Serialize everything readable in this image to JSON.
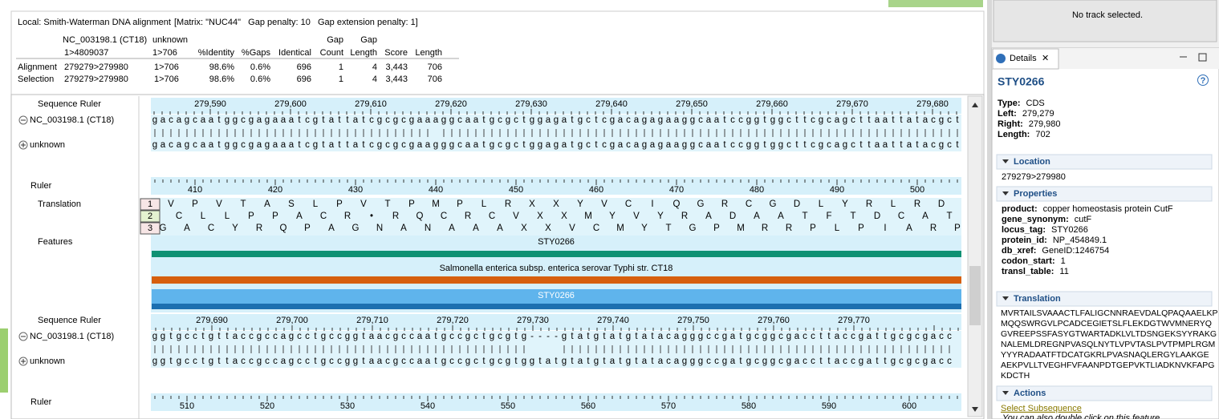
{
  "alignment_summary": {
    "title": "Local: Smith-Waterman DNA alignment",
    "parameters": "[Matrix: \"NUC44\"   Gap penalty: 10   Gap extension penalty: 1]",
    "columns": [
      [
        "NC_003198.1 (CT18)",
        "1>4809037"
      ],
      [
        "unknown",
        "1>706"
      ],
      [
        "%Identity"
      ],
      [
        "%Gaps"
      ],
      [
        "Identical"
      ],
      [
        "Gap",
        "Count"
      ],
      [
        "Gap",
        "Length"
      ],
      [
        "Score"
      ],
      [
        "Length"
      ]
    ],
    "rows": [
      [
        "Alignment",
        "279279>279980",
        "1>706",
        "98.6%",
        "0.6%",
        "696",
        "1",
        "4",
        "3,443",
        "706"
      ],
      [
        "Selection",
        "279279>279980",
        "1>706",
        "98.6%",
        "0.6%",
        "696",
        "1",
        "4",
        "3,443",
        "706"
      ]
    ]
  },
  "sequence_view": {
    "blocks": [
      {
        "sequence_ruler_label": "Sequence Ruler",
        "sequence_ruler": [
          "279,590",
          "279,600",
          "279,610",
          "279,620",
          "279,630",
          "279,640",
          "279,650",
          "279,660",
          "279,670",
          "279,680"
        ],
        "seq1_name": "NC_003198.1 (CT18)",
        "seq1": "gacagcaatggcgagaaatcgtattatcgcgcgaaaggcaatgcgctggagatgctcgacagagaaggcaatccggtggcttcgcagcttaattatacgct",
        "seq2_name": "unknown",
        "seq2": "gacagcaatggcgagaaatcgtattatcgcgcgaagggcaatgcgctggagatgctcgacagagaaggcaatccggtggcttcgcagcttaattatacgct",
        "ruler_label": "Ruler",
        "ruler": [
          "410",
          "420",
          "430",
          "440",
          "450",
          "460",
          "470",
          "480",
          "490",
          "500"
        ]
      },
      {
        "sequence_ruler_label": "Sequence Ruler",
        "sequence_ruler": [
          "279,690",
          "279,700",
          "279,710",
          "279,720",
          "279,730",
          "279,740",
          "279,750",
          "279,760",
          "279,770"
        ],
        "seq1_name": "NC_003198.1 (CT18)",
        "seq1": "ggtgcctgttaccgccagcctgccggtaacgccaatgccgctgcgtg----gtatgtatgtatacagggccgatgcggcgaccttaccgattgcgcgacc",
        "seq2_name": "unknown",
        "seq2": "ggtgcctgttaccgccagcctgccggtaacgccaatgccgctgcgtggtatgtatgtatgtatacagggccgatgcggcgaccttaccgattgcgcgacc",
        "ruler_label": "Ruler",
        "ruler": [
          "510",
          "520",
          "530",
          "540",
          "550",
          "560",
          "570",
          "580",
          "590",
          "600"
        ]
      }
    ],
    "translation_label": "Translation",
    "frames": [
      {
        "number": "1",
        "aa": "VPVTASLPVTPMPLRXXYVCIQGRCGDLYRLRD"
      },
      {
        "number": "2",
        "aa": "CLLPPACR•RQCRCVXXMYVYRADAATFTDCAT"
      },
      {
        "number": "3",
        "aa": "GACYRQPAGNANAAAXXVCMYTGPMRRPLPIARP"
      }
    ],
    "features_label": "Features",
    "features": [
      "STY0266",
      "Salmonella enterica subsp. enterica serovar Typhi str. CT18",
      "STY0266"
    ]
  },
  "track_panel": {
    "message": "No track selected."
  },
  "details": {
    "tab": "Details",
    "name": "STY0266",
    "summary": [
      [
        "Type:",
        "CDS"
      ],
      [
        "Left:",
        "279,279"
      ],
      [
        "Right:",
        "279,980"
      ],
      [
        "Length:",
        "702"
      ]
    ],
    "location_header": "Location",
    "location": "279279>279980",
    "properties_header": "Properties",
    "properties": [
      [
        "product:",
        "copper homeostasis protein CutF"
      ],
      [
        "gene_synonym:",
        "cutF"
      ],
      [
        "locus_tag:",
        "STY0266"
      ],
      [
        "protein_id:",
        "NP_454849.1"
      ],
      [
        "db_xref:",
        "GeneID:1246754"
      ],
      [
        "codon_start:",
        "1"
      ],
      [
        "transl_table:",
        "11"
      ]
    ],
    "translation_header": "Translation",
    "translation": [
      "MVRTAILSVAAACTLFALIGCNNRAEVDALQPAQAAELKP",
      "MQQSWRGVLPCADCEGIETSLFLEKDGTWVMNERYQ",
      "GVREEPSSFASYGTWARTADKLVLTDSNGEKSYYRAKG",
      "NALEMLDREGNPVASQLNYTLVPVTASLPVTPMPLRGM",
      "YYYRADAATFTDCATGKRLPVASNAQLERGYLAAKGE",
      "AEKPVLLTVEGHFVFAANPDTGEPVKTLIADKNVKFAPG",
      "KDCTH"
    ],
    "actions_header": "Actions",
    "action_link": "Select Subsequence",
    "action_hint": "You can also double click on this feature."
  }
}
